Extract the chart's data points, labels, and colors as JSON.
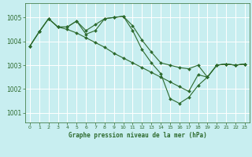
{
  "background_color": "#c8eef0",
  "grid_color": "#ffffff",
  "line_color": "#2d6a2d",
  "title": "Graphe pression niveau de la mer (hPa)",
  "ylabel_values": [
    1001,
    1002,
    1003,
    1004,
    1005
  ],
  "xlim": [
    -0.5,
    23.5
  ],
  "ylim": [
    1000.6,
    1005.6
  ],
  "series": [
    [
      1003.8,
      1004.4,
      1004.95,
      1004.6,
      1004.6,
      1004.85,
      1004.45,
      1004.7,
      1004.95,
      1005.0,
      1005.05,
      1004.65,
      1004.05,
      1003.55,
      1003.1,
      1003.0,
      1002.9,
      1002.85,
      1003.0,
      1002.5,
      1003.0,
      1003.05,
      1003.0,
      1003.05
    ],
    [
      1003.8,
      1004.4,
      1004.95,
      1004.6,
      1004.6,
      1004.85,
      1004.3,
      1004.45,
      1004.95,
      1005.0,
      1005.05,
      1004.45,
      1003.65,
      1003.1,
      1002.65,
      1001.6,
      1001.4,
      1001.65,
      1002.15,
      1002.5,
      1003.0,
      1003.05,
      1003.0,
      1003.05
    ],
    [
      1003.8,
      1004.4,
      1004.95,
      1004.6,
      1004.5,
      1004.35,
      1004.15,
      1003.95,
      1003.75,
      1003.5,
      1003.3,
      1003.1,
      1002.9,
      1002.7,
      1002.5,
      1002.3,
      1002.1,
      1001.9,
      1002.6,
      1002.5,
      1003.0,
      1003.05,
      1003.0,
      1003.05
    ]
  ]
}
